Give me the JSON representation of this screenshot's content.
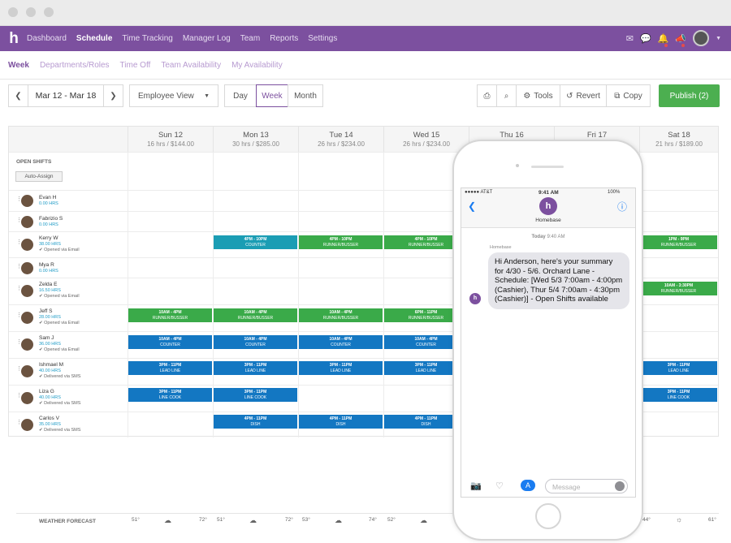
{
  "nav": {
    "logo": "h",
    "links": [
      "Dashboard",
      "Schedule",
      "Time Tracking",
      "Manager Log",
      "Team",
      "Reports",
      "Settings"
    ]
  },
  "subnav": [
    "Week",
    "Departments/Roles",
    "Time Off",
    "Team Availability",
    "My Availability"
  ],
  "toolbar": {
    "prev": "❮",
    "range": "Mar 12 - Mar 18",
    "next": "❯",
    "view_select": "Employee View",
    "views": [
      "Day",
      "Week",
      "Month"
    ],
    "print": "⎙",
    "search": "⌕",
    "tools": "Tools",
    "revert": "Revert",
    "copy": "Copy",
    "publish": "Publish (2)"
  },
  "days": [
    {
      "d": "Sun 12",
      "h": "16 hrs / $144.00"
    },
    {
      "d": "Mon 13",
      "h": "30 hrs / $285.00"
    },
    {
      "d": "Tue 14",
      "h": "26 hrs / $234.00"
    },
    {
      "d": "Wed 15",
      "h": "26 hrs / $234.00"
    },
    {
      "d": "Thu 16",
      "h": ""
    },
    {
      "d": "Fri 17",
      "h": ""
    },
    {
      "d": "Sat 18",
      "h": "21 hrs / $189.00"
    }
  ],
  "open_shifts": {
    "label": "OPEN SHIFTS",
    "auto_assign": "Auto-Assign"
  },
  "employees": [
    {
      "name": "Evan H",
      "hrs": "0.00 HRS",
      "status": ""
    },
    {
      "name": "Fabrizio S",
      "hrs": "0.00 HRS",
      "status": ""
    },
    {
      "name": "Kerry W",
      "hrs": "38.00 HRS",
      "status": "✔ Opened via Email"
    },
    {
      "name": "Mya R",
      "hrs": "0.00 HRS",
      "status": ""
    },
    {
      "name": "Zelda E",
      "hrs": "16.50 HRS",
      "status": "✔ Opened via Email"
    },
    {
      "name": "Jeff S",
      "hrs": "28.00 HRS",
      "status": "✔ Opened via Email"
    },
    {
      "name": "Sam J",
      "hrs": "36.00 HRS",
      "status": "✔ Opened via Email"
    },
    {
      "name": "Ishmael M",
      "hrs": "40.00 HRS",
      "status": "✔ Delivered via SMS"
    },
    {
      "name": "Liza G",
      "hrs": "40.00 HRS",
      "status": "✔ Delivered via SMS"
    },
    {
      "name": "Carlos V",
      "hrs": "35.00 HRS",
      "status": "✔ Delivered via SMS"
    }
  ],
  "shift_labels": [
    {
      "t": "4PM - 10PM",
      "r": "COUNTER"
    },
    {
      "t": "4PM - 10PM",
      "r": "RUNNER/BUSSER"
    },
    {
      "t": "4PM - 10PM",
      "r": "RUNNER/BUSSER"
    },
    {
      "t": "1PM - 9PM",
      "r": "RUNNER/BUSSER"
    },
    {
      "t": "10AM - 3:30PM",
      "r": "RUNNER/BUSSER"
    },
    {
      "t": "10AM - 4PM",
      "r": "RUNNER/BUSSER"
    },
    {
      "t": "10AM - 4PM",
      "r": "RUNNER/BUSSER"
    },
    {
      "t": "10AM - 4PM",
      "r": "RUNNER/BUSSER"
    },
    {
      "t": "6PM - 11PM",
      "r": "RUNNER/BUSSER"
    },
    {
      "t": "10AM - 4PM",
      "r": "COUNTER"
    },
    {
      "t": "10AM - 4PM",
      "r": "COUNTER"
    },
    {
      "t": "10AM - 4PM",
      "r": "COUNTER"
    },
    {
      "t": "10AM - 4PM",
      "r": "COUNTER"
    },
    {
      "t": "3PM - 11PM",
      "r": "LEAD LINE"
    },
    {
      "t": "3PM - 11PM",
      "r": "LEAD LINE"
    },
    {
      "t": "3PM - 11PM",
      "r": "LEAD LINE"
    },
    {
      "t": "3PM - 11PM",
      "r": "LEAD LINE"
    },
    {
      "t": "3PM - 11PM",
      "r": "LEAD LINE"
    },
    {
      "t": "3PM - 11PM",
      "r": "LINE COOK"
    },
    {
      "t": "3PM - 11PM",
      "r": "LINE COOK"
    },
    {
      "t": "3PM - 11PM",
      "r": "LINE COOK"
    },
    {
      "t": "4PM - 11PM",
      "r": "DISH"
    },
    {
      "t": "4PM - 11PM",
      "r": "DISH"
    },
    {
      "t": "4PM - 11PM",
      "r": "DISH"
    }
  ],
  "weather": {
    "label": "WEATHER FORECAST",
    "temps": [
      "51°",
      "72°",
      "51°",
      "72°",
      "53°",
      "74°",
      "52°",
      "44°",
      "61°"
    ]
  },
  "phone": {
    "carrier": "●●●●● AT&T",
    "time": "9:41 AM",
    "battery": "100%",
    "back": "❮",
    "contact_initial": "h",
    "contact": "Homebase",
    "info": "ⓘ",
    "date": "Today",
    "date_time": "9:40 AM",
    "sender": "Homebase",
    "message": "Hi Anderson, here's your summary for 4/30 - 5/6. Orchard Lane - Schedule: [Wed 5/3 7:00am - 4:00pm (Cashier), Thur 5/4 7:00am - 4:30pm (Cashier)] - Open Shifts available",
    "input_placeholder": "Message"
  }
}
